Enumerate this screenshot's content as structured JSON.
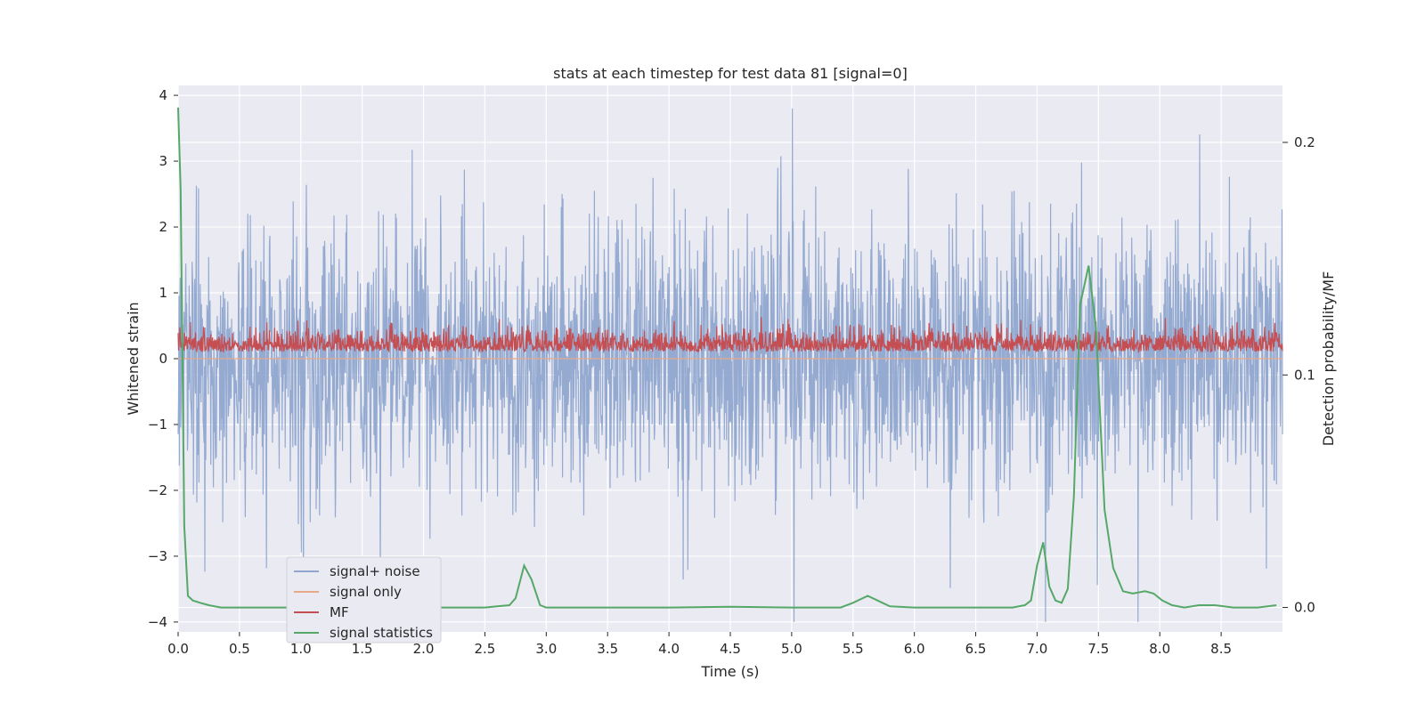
{
  "chart_data": {
    "type": "line",
    "title": "stats at each timestep for test data 81 [signal=0]",
    "xlabel": "Time (s)",
    "ylabel_left": "Whitened strain",
    "ylabel_right": "Detection probability/MF",
    "xlim": [
      0.0,
      9.0
    ],
    "ylim_left": [
      -4.15,
      4.15
    ],
    "ylim_right": [
      -0.0105,
      0.2245
    ],
    "x_ticks": [
      "0.0",
      "0.5",
      "1.0",
      "1.5",
      "2.0",
      "2.5",
      "3.0",
      "3.5",
      "4.0",
      "4.5",
      "5.0",
      "5.5",
      "6.0",
      "6.5",
      "7.0",
      "7.5",
      "8.0",
      "8.5"
    ],
    "y_ticks_left": [
      "−4",
      "−3",
      "−2",
      "−1",
      "0",
      "1",
      "2",
      "3",
      "4"
    ],
    "y_ticks_right": [
      "0.0",
      "0.1",
      "0.2"
    ],
    "grid": true,
    "legend_position": "lower-left",
    "legend": [
      {
        "name": "signal+ noise",
        "color": "#8fa6cf"
      },
      {
        "name": "signal only",
        "color": "#e8a88a"
      },
      {
        "name": "MF",
        "color": "#c44e52"
      },
      {
        "name": "signal statistics",
        "color": "#55a868"
      }
    ],
    "series": [
      {
        "name": "signal+ noise",
        "axis": "left",
        "color": "#8fa6cf",
        "description_level": "noise around 0, amplitude ~±2.5 (peaks to ~3.8 and ~-4)",
        "range_x": [
          0.0,
          9.0
        ]
      },
      {
        "name": "signal only",
        "axis": "left",
        "color": "#e8a88a",
        "values_constant": 0
      },
      {
        "name": "MF",
        "axis": "right",
        "color": "#c44e52",
        "range": [
          0.11,
          0.126
        ]
      },
      {
        "name": "signal statistics",
        "axis": "right",
        "color": "#55a868",
        "x": [
          0.0,
          0.02,
          0.05,
          0.08,
          0.12,
          0.18,
          0.25,
          0.35,
          0.5,
          1.0,
          1.5,
          2.0,
          2.5,
          2.6,
          2.7,
          2.75,
          2.82,
          2.88,
          2.95,
          3.0,
          3.5,
          4.0,
          4.5,
          5.0,
          5.4,
          5.5,
          5.62,
          5.7,
          5.8,
          6.0,
          6.5,
          6.8,
          6.9,
          6.95,
          7.0,
          7.05,
          7.1,
          7.15,
          7.2,
          7.25,
          7.3,
          7.35,
          7.42,
          7.48,
          7.55,
          7.62,
          7.7,
          7.78,
          7.88,
          7.95,
          8.02,
          8.1,
          8.2,
          8.32,
          8.45,
          8.6,
          8.8,
          8.95
        ],
        "y": [
          0.215,
          0.18,
          0.035,
          0.005,
          0.003,
          0.002,
          0.001,
          0.0,
          0.0,
          0.0,
          0.0,
          0.0,
          0.0,
          0.0005,
          0.001,
          0.004,
          0.018,
          0.012,
          0.001,
          0.0,
          0.0,
          0.0,
          0.0003,
          0.0,
          0.0,
          0.002,
          0.005,
          0.003,
          0.0005,
          0.0,
          0.0,
          0.0,
          0.001,
          0.003,
          0.018,
          0.028,
          0.009,
          0.003,
          0.002,
          0.008,
          0.048,
          0.13,
          0.147,
          0.12,
          0.042,
          0.017,
          0.007,
          0.006,
          0.007,
          0.006,
          0.003,
          0.001,
          0.0,
          0.001,
          0.001,
          0.0,
          0.0,
          0.001
        ]
      }
    ]
  }
}
